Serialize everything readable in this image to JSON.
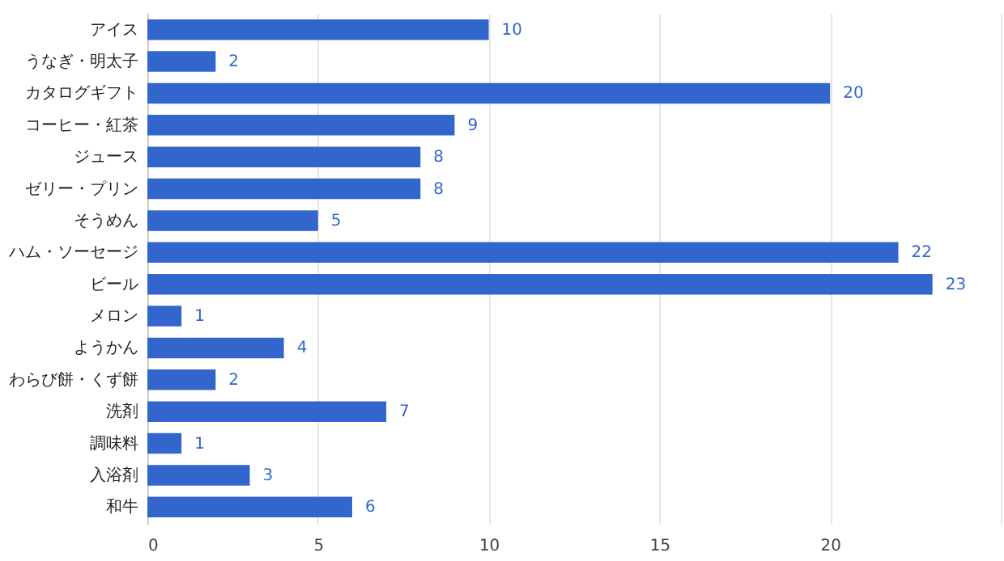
{
  "chart_data": {
    "type": "bar",
    "orientation": "horizontal",
    "categories": [
      "アイス",
      "うなぎ・明太子",
      "カタログギフト",
      "コーヒー・紅茶",
      "ジュース",
      "ゼリー・プリン",
      "そうめん",
      "ハム・ソーセージ",
      "ビール",
      "メロン",
      "ようかん",
      "わらび餅・くず餅",
      "洗剤",
      "調味料",
      "入浴剤",
      "和牛"
    ],
    "values": [
      10,
      2,
      20,
      9,
      8,
      8,
      5,
      22,
      23,
      1,
      4,
      2,
      7,
      1,
      3,
      6
    ],
    "color": "#3366cc",
    "xlim": [
      0,
      25
    ],
    "xticks": [
      0,
      5,
      10,
      15,
      20,
      {
        "value": 25,
        "label": null
      }
    ],
    "grid": "x",
    "data_labels": true
  }
}
